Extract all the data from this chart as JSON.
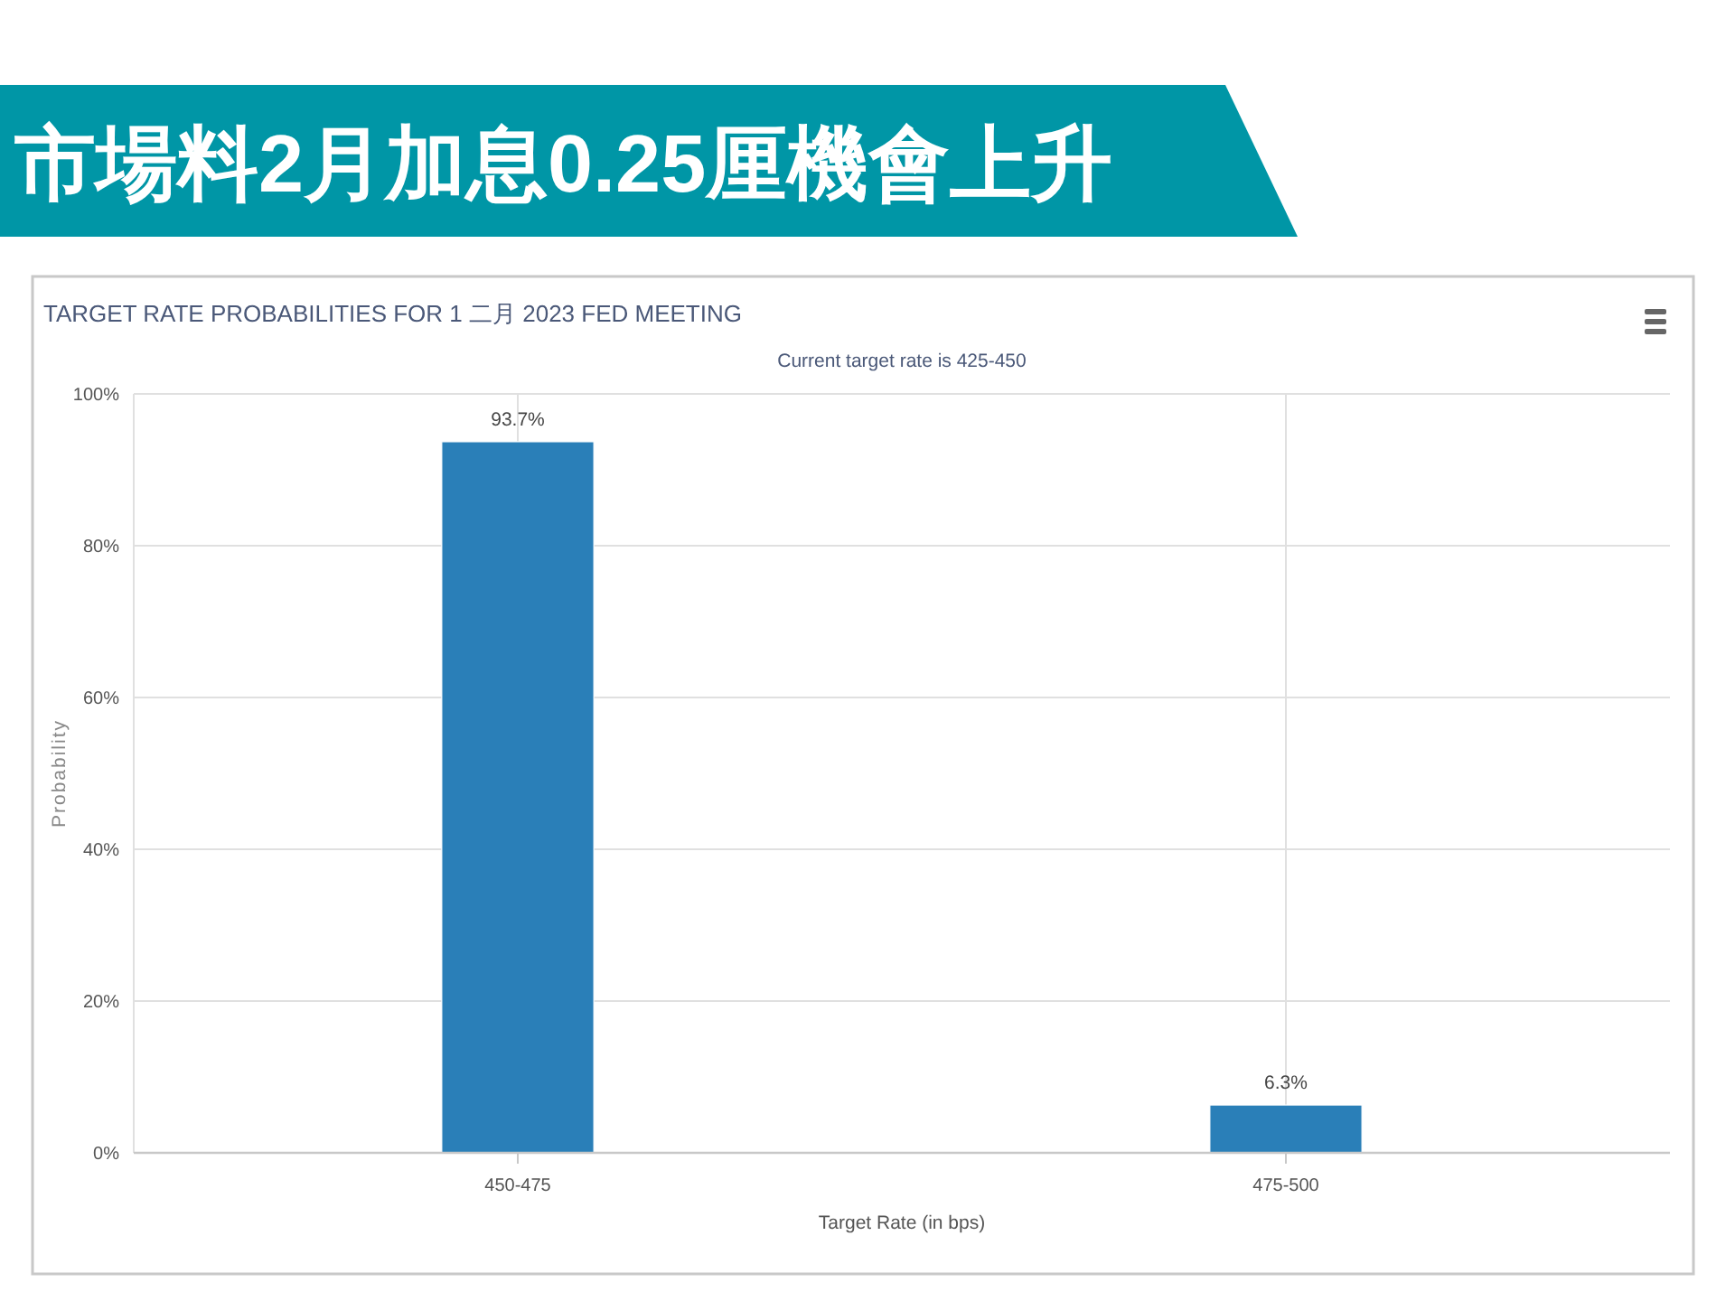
{
  "chart_data": {
    "type": "bar",
    "title": "市場料2月加息0.25厘機會上升",
    "subtitle": "TARGET RATE PROBABILITIES FOR 1 二月 2023 FED MEETING",
    "annotations": [
      "Current target rate is 425-450"
    ],
    "xlabel": "Target Rate (in bps)",
    "ylabel": "Probability",
    "categories": [
      "450-475",
      "475-500"
    ],
    "values": [
      93.7,
      6.3
    ],
    "value_labels": [
      "93.7%",
      "6.3%"
    ],
    "color": "#2a7fb8",
    "ylim": [
      0,
      100
    ],
    "yticks": [
      {
        "value": 0,
        "label": "0%"
      },
      {
        "value": 20,
        "label": "20%"
      },
      {
        "value": 40,
        "label": "40%"
      },
      {
        "value": 60,
        "label": "60%"
      },
      {
        "value": 80,
        "label": "80%"
      },
      {
        "value": 100,
        "label": "100%"
      }
    ],
    "grid": true
  }
}
